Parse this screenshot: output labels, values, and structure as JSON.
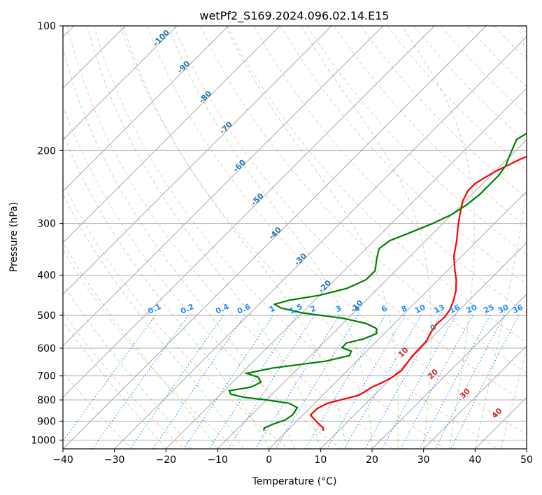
{
  "chart_data": {
    "type": "line",
    "title": "wetPf2_S169.2024.096.02.14.E15",
    "xlabel": "Temperature (°C)",
    "ylabel": "Pressure (hPa)",
    "xlim": [
      -40,
      50
    ],
    "ylim": [
      1050,
      100
    ],
    "y_scale": "log",
    "x_ticks": [
      -40,
      -30,
      -20,
      -10,
      0,
      10,
      20,
      30,
      40,
      50
    ],
    "y_ticks": [
      100,
      200,
      300,
      400,
      500,
      600,
      700,
      800,
      900,
      1000
    ],
    "grid": "horizontal pressure lines",
    "colors": {
      "temperature": "#ff0000",
      "dewpoint": "#008000",
      "isotherm": "#aaaaaa",
      "grid": "#b0b0b0",
      "dry_adiabat": "#ff7f50",
      "moist_adiabat": "#2ca02c",
      "mixing_ratio": "#1e90ff",
      "isotherm_label": "#1f77b4",
      "wetbulb_label": "#d62728"
    },
    "series": [
      {
        "key": "temperature",
        "points": [
          [
            7,
            950
          ],
          [
            6.5,
            935
          ],
          [
            4.5,
            910
          ],
          [
            3,
            890
          ],
          [
            1.5,
            870
          ],
          [
            1.5,
            840
          ],
          [
            2.5,
            815
          ],
          [
            5,
            795
          ],
          [
            7,
            780
          ],
          [
            7.5,
            765
          ],
          [
            8,
            745
          ],
          [
            9.2,
            725
          ],
          [
            10,
            705
          ],
          [
            10.5,
            680
          ],
          [
            10.2,
            655
          ],
          [
            9.8,
            630
          ],
          [
            9.7,
            600
          ],
          [
            9.6,
            575
          ],
          [
            8.8,
            550
          ],
          [
            8.3,
            525
          ],
          [
            8.5,
            505
          ],
          [
            8.1,
            485
          ],
          [
            7,
            460
          ],
          [
            5.5,
            435
          ],
          [
            3.5,
            410
          ],
          [
            1.5,
            390
          ],
          [
            -1.5,
            360
          ],
          [
            -4,
            330
          ],
          [
            -6.5,
            305
          ],
          [
            -8.5,
            285
          ],
          [
            -10.5,
            265
          ],
          [
            -11.5,
            250
          ],
          [
            -11.5,
            240
          ],
          [
            -10,
            225
          ],
          [
            -7.5,
            210
          ],
          [
            -5,
            200
          ],
          [
            -2,
            188
          ],
          [
            2,
            172
          ],
          [
            6.5,
            158
          ],
          [
            12,
            145
          ],
          [
            15,
            138
          ],
          [
            16,
            128
          ],
          [
            17,
            118
          ],
          [
            20,
            110
          ],
          [
            23,
            105
          ],
          [
            25,
            100
          ]
        ]
      },
      {
        "key": "dewpoint",
        "points": [
          [
            -4.5,
            950
          ],
          [
            -5,
            935
          ],
          [
            -4,
            915
          ],
          [
            -2.5,
            895
          ],
          [
            -2,
            870
          ],
          [
            -2.5,
            835
          ],
          [
            -5,
            815
          ],
          [
            -10,
            800
          ],
          [
            -15,
            788
          ],
          [
            -18,
            775
          ],
          [
            -19,
            760
          ],
          [
            -15.5,
            745
          ],
          [
            -14.5,
            725
          ],
          [
            -16,
            705
          ],
          [
            -19,
            690
          ],
          [
            -15,
            670
          ],
          [
            -6,
            645
          ],
          [
            -2.5,
            625
          ],
          [
            -3,
            610
          ],
          [
            -5.5,
            598
          ],
          [
            -5.5,
            583
          ],
          [
            -3,
            570
          ],
          [
            -1.5,
            553
          ],
          [
            -2.5,
            538
          ],
          [
            -5.5,
            523
          ],
          [
            -11,
            508
          ],
          [
            -20,
            493
          ],
          [
            -25,
            480
          ],
          [
            -27,
            470
          ],
          [
            -25,
            460
          ],
          [
            -20,
            447
          ],
          [
            -16,
            430
          ],
          [
            -14,
            410
          ],
          [
            -14,
            390
          ],
          [
            -16,
            365
          ],
          [
            -17.5,
            345
          ],
          [
            -17,
            330
          ],
          [
            -15,
            318
          ],
          [
            -12,
            300
          ],
          [
            -10,
            285
          ],
          [
            -9,
            270
          ],
          [
            -8.5,
            255
          ],
          [
            -8.5,
            242
          ],
          [
            -8.5,
            230
          ],
          [
            -9,
            218
          ],
          [
            -10,
            208
          ],
          [
            -11,
            198
          ],
          [
            -12,
            188
          ],
          [
            -11,
            180
          ],
          [
            -8,
            173
          ],
          [
            -7,
            165
          ],
          [
            -7,
            160
          ],
          [
            -8,
            152
          ],
          [
            -10,
            143
          ],
          [
            -10,
            135
          ],
          [
            -8,
            128
          ],
          [
            -5,
            120
          ],
          [
            -3,
            112
          ],
          [
            -0.5,
            105
          ],
          [
            1.5,
            100
          ]
        ]
      }
    ],
    "isotherm_labels": [
      "-100",
      "-90",
      "-80",
      "-70",
      "-60",
      "-50",
      "-40",
      "-30",
      "-20",
      "-10"
    ],
    "mixing_ratio_labels": [
      "0.1",
      "0.2",
      "0.4",
      "0.6",
      "1",
      "1.5",
      "2",
      "3",
      "4",
      "6",
      "8",
      "10",
      "13",
      "16",
      "20",
      "25",
      "30",
      "36"
    ],
    "wetbulb_labels": [
      "0",
      "10",
      "20",
      "30",
      "40"
    ]
  }
}
